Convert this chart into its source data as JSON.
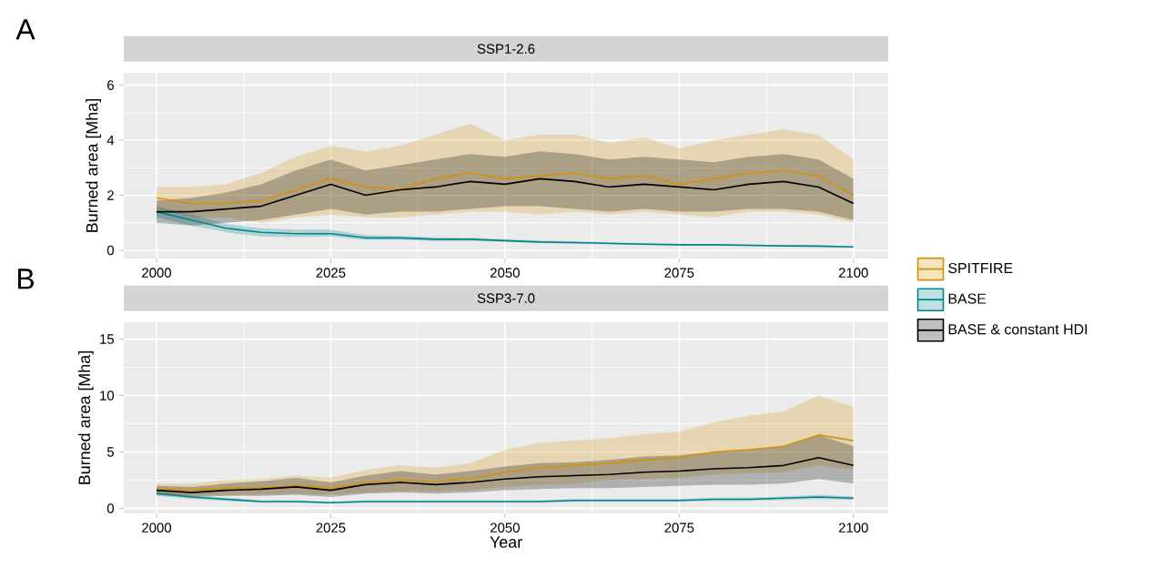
{
  "chart_data": [
    {
      "type": "line",
      "title": "SSP1-2.6",
      "annotations": [
        "A"
      ],
      "ylabel": "Burned area [Mha]",
      "xlim": [
        1995.3,
        2105
      ],
      "ylim": [
        -0.3,
        6.45
      ],
      "xticks": [
        2000,
        2025,
        2050,
        2075,
        2100
      ],
      "yticks": [
        0,
        2,
        4,
        6
      ],
      "grid": true,
      "x": [
        2000,
        2005,
        2010,
        2015,
        2020,
        2025,
        2030,
        2035,
        2040,
        2045,
        2050,
        2055,
        2060,
        2065,
        2070,
        2075,
        2080,
        2085,
        2090,
        2095,
        2100
      ],
      "series": [
        {
          "color": "#d4920a",
          "values": [
            1.9,
            1.7,
            1.7,
            1.8,
            2.2,
            2.6,
            2.3,
            2.2,
            2.6,
            2.8,
            2.6,
            2.7,
            2.8,
            2.6,
            2.7,
            2.4,
            2.6,
            2.8,
            2.9,
            2.7,
            2.0
          ],
          "lower": [
            1.5,
            1.2,
            1.2,
            1.0,
            1.2,
            1.3,
            1.2,
            1.2,
            1.3,
            1.4,
            1.4,
            1.3,
            1.4,
            1.3,
            1.4,
            1.3,
            1.2,
            1.4,
            1.4,
            1.3,
            1.0
          ],
          "upper": [
            2.3,
            2.3,
            2.4,
            2.8,
            3.4,
            3.8,
            3.6,
            3.8,
            4.2,
            4.6,
            4.0,
            4.2,
            4.2,
            3.9,
            4.1,
            3.7,
            4.0,
            4.2,
            4.4,
            4.2,
            3.3
          ]
        },
        {
          "color": "#00868b",
          "values": [
            1.4,
            1.1,
            0.8,
            0.65,
            0.6,
            0.6,
            0.45,
            0.45,
            0.4,
            0.4,
            0.35,
            0.3,
            0.28,
            0.25,
            0.22,
            0.2,
            0.2,
            0.18,
            0.16,
            0.15,
            0.12
          ],
          "lower": [
            1.2,
            0.9,
            0.65,
            0.5,
            0.48,
            0.5,
            0.38,
            0.38,
            0.34,
            0.34,
            0.3,
            0.26,
            0.24,
            0.21,
            0.19,
            0.17,
            0.17,
            0.15,
            0.13,
            0.12,
            0.1
          ],
          "upper": [
            1.6,
            1.3,
            0.95,
            0.8,
            0.75,
            0.75,
            0.55,
            0.52,
            0.47,
            0.46,
            0.4,
            0.35,
            0.32,
            0.29,
            0.26,
            0.23,
            0.23,
            0.21,
            0.19,
            0.18,
            0.15
          ]
        },
        {
          "color": "#000000",
          "values": [
            1.4,
            1.4,
            1.5,
            1.6,
            2.0,
            2.4,
            2.0,
            2.2,
            2.3,
            2.5,
            2.4,
            2.6,
            2.5,
            2.3,
            2.4,
            2.3,
            2.2,
            2.4,
            2.5,
            2.3,
            1.7
          ],
          "lower": [
            1.0,
            0.9,
            1.0,
            1.1,
            1.3,
            1.5,
            1.3,
            1.4,
            1.4,
            1.5,
            1.6,
            1.6,
            1.5,
            1.4,
            1.5,
            1.4,
            1.4,
            1.5,
            1.5,
            1.4,
            1.1
          ],
          "upper": [
            1.8,
            1.9,
            2.1,
            2.4,
            2.9,
            3.3,
            2.9,
            3.1,
            3.3,
            3.5,
            3.4,
            3.6,
            3.5,
            3.3,
            3.4,
            3.3,
            3.2,
            3.4,
            3.5,
            3.3,
            2.6
          ]
        }
      ]
    },
    {
      "type": "line",
      "title": "SSP3-7.0",
      "annotations": [
        "B"
      ],
      "xlabel": "Year",
      "ylabel": "Burned area [Mha]",
      "xlim": [
        1995.3,
        2105
      ],
      "ylim": [
        -0.45,
        16.5
      ],
      "xticks": [
        2000,
        2025,
        2050,
        2075,
        2100
      ],
      "yticks": [
        0,
        5,
        10,
        15
      ],
      "grid": true,
      "legend": "right",
      "x": [
        2000,
        2005,
        2010,
        2015,
        2020,
        2025,
        2030,
        2035,
        2040,
        2045,
        2050,
        2055,
        2060,
        2065,
        2070,
        2075,
        2080,
        2085,
        2090,
        2095,
        2100
      ],
      "series": [
        {
          "name": "SPITFIRE",
          "color": "#d4920a",
          "values": [
            1.7,
            1.6,
            1.8,
            1.8,
            2.0,
            1.8,
            2.3,
            2.5,
            2.4,
            2.6,
            3.2,
            3.6,
            3.8,
            4.0,
            4.3,
            4.5,
            5.0,
            5.2,
            5.5,
            6.5,
            6.0
          ],
          "lower": [
            1.2,
            1.1,
            1.2,
            1.2,
            1.3,
            1.2,
            1.4,
            1.5,
            1.5,
            1.6,
            1.9,
            2.1,
            2.2,
            2.5,
            2.6,
            2.7,
            3.0,
            3.1,
            3.2,
            3.8,
            3.4
          ],
          "upper": [
            2.2,
            2.2,
            2.5,
            2.6,
            2.9,
            2.7,
            3.4,
            3.8,
            3.6,
            4.0,
            5.2,
            5.8,
            6.0,
            6.2,
            6.6,
            6.8,
            7.6,
            8.2,
            8.6,
            10,
            9.0
          ]
        },
        {
          "name": "BASE",
          "color": "#00868b",
          "values": [
            1.3,
            1.0,
            0.8,
            0.6,
            0.6,
            0.5,
            0.6,
            0.6,
            0.6,
            0.6,
            0.6,
            0.6,
            0.7,
            0.7,
            0.7,
            0.7,
            0.8,
            0.8,
            0.9,
            1.0,
            0.9
          ],
          "lower": [
            1.1,
            0.85,
            0.65,
            0.5,
            0.5,
            0.42,
            0.5,
            0.5,
            0.5,
            0.5,
            0.5,
            0.5,
            0.58,
            0.58,
            0.58,
            0.58,
            0.66,
            0.66,
            0.74,
            0.82,
            0.74
          ],
          "upper": [
            1.5,
            1.15,
            0.95,
            0.7,
            0.7,
            0.6,
            0.7,
            0.7,
            0.7,
            0.7,
            0.7,
            0.7,
            0.82,
            0.82,
            0.82,
            0.82,
            0.94,
            0.94,
            1.05,
            1.2,
            1.05
          ]
        },
        {
          "name": "BASE & constant HDI",
          "color": "#000000",
          "values": [
            1.6,
            1.4,
            1.6,
            1.7,
            1.9,
            1.6,
            2.1,
            2.3,
            2.1,
            2.3,
            2.6,
            2.8,
            2.9,
            3.0,
            3.2,
            3.3,
            3.5,
            3.6,
            3.8,
            4.5,
            3.8
          ],
          "lower": [
            1.2,
            1.0,
            1.1,
            1.1,
            1.2,
            1.0,
            1.3,
            1.4,
            1.3,
            1.4,
            1.6,
            1.7,
            1.8,
            1.8,
            1.9,
            2.0,
            2.1,
            2.1,
            2.2,
            2.6,
            2.2
          ],
          "upper": [
            2.0,
            1.9,
            2.2,
            2.4,
            2.7,
            2.3,
            2.9,
            3.3,
            3.0,
            3.3,
            3.7,
            4.0,
            4.1,
            4.3,
            4.6,
            4.7,
            5.0,
            5.2,
            5.5,
            6.5,
            5.5
          ]
        }
      ]
    }
  ]
}
